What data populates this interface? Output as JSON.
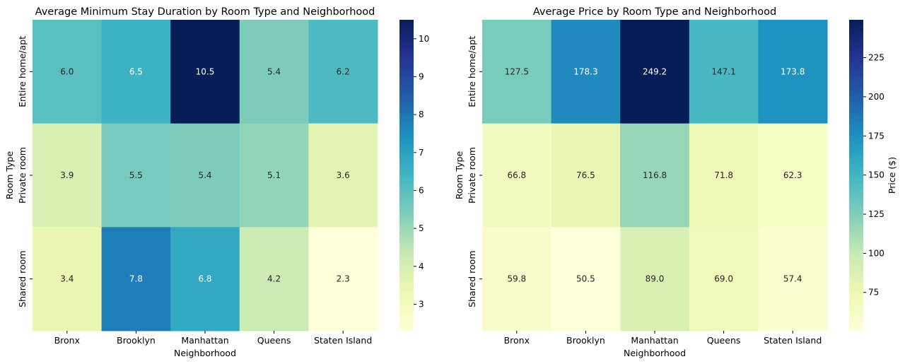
{
  "chart_data": [
    {
      "type": "heatmap",
      "title": "Average Minimum Stay Duration by Room Type and Neighborhood",
      "xlabel": "Neighborhood",
      "ylabel": "Room Type",
      "x": [
        "Bronx",
        "Brooklyn",
        "Manhattan",
        "Queens",
        "Staten Island"
      ],
      "y": [
        "Entire home/apt",
        "Private room",
        "Shared room"
      ],
      "values": [
        [
          6.0,
          6.5,
          10.5,
          5.4,
          6.2
        ],
        [
          3.9,
          5.5,
          5.4,
          5.1,
          3.6
        ],
        [
          3.4,
          7.8,
          6.8,
          4.2,
          2.3
        ]
      ],
      "value_format": "0.0",
      "colormap": "YlGnBu",
      "color_range": [
        2.3,
        10.5
      ],
      "colorbar": {
        "label": "",
        "ticks": [
          "3",
          "4",
          "5",
          "6",
          "7",
          "8",
          "9",
          "10"
        ]
      }
    },
    {
      "type": "heatmap",
      "title": "Average Price by Room Type and Neighborhood",
      "xlabel": "Neighborhood",
      "ylabel": "Room Type",
      "x": [
        "Bronx",
        "Brooklyn",
        "Manhattan",
        "Queens",
        "Staten Island"
      ],
      "y": [
        "Entire home/apt",
        "Private room",
        "Shared room"
      ],
      "values": [
        [
          127.5,
          178.3,
          249.2,
          147.1,
          173.8
        ],
        [
          66.8,
          76.5,
          116.8,
          71.8,
          62.3
        ],
        [
          59.8,
          50.5,
          89.0,
          69.0,
          57.4
        ]
      ],
      "value_format": "0.0",
      "colormap": "YlGnBu",
      "color_range": [
        50.5,
        249.2
      ],
      "colorbar": {
        "label": "Price ($)",
        "ticks": [
          "75",
          "100",
          "125",
          "150",
          "175",
          "200",
          "225"
        ]
      }
    }
  ]
}
